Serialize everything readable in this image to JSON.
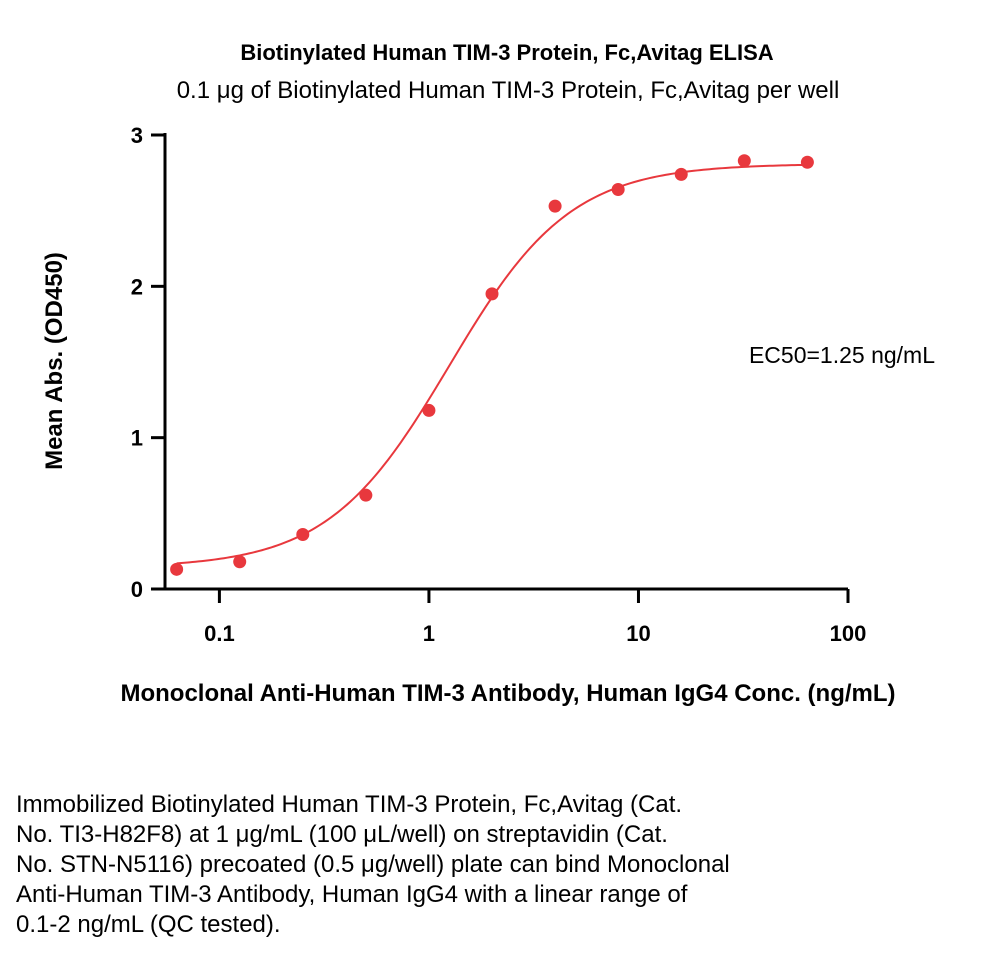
{
  "chart_data": {
    "type": "scatter",
    "title": "Biotinylated Human TIM-3 Protein, Fc,Avitag ELISA",
    "subtitle": "0.1 μg of Biotinylated Human TIM-3 Protein, Fc,Avitag per well",
    "xlabel": "Monoclonal Anti-Human TIM-3 Antibody, Human IgG4 Conc. (ng/mL)",
    "ylabel": "Mean Abs. (OD450)",
    "xscale": "log",
    "xlim": [
      0.055,
      100
    ],
    "ylim": [
      0,
      3
    ],
    "xticks": [
      0.1,
      1,
      10,
      100
    ],
    "xtick_labels": [
      "0.1",
      "1",
      "10",
      "100"
    ],
    "yticks": [
      0,
      1,
      2,
      3
    ],
    "ytick_labels": [
      "0",
      "1",
      "2",
      "3"
    ],
    "grid": false,
    "color": "#e8383d",
    "series": [
      {
        "x": [
          0.0625,
          0.125,
          0.25,
          0.5,
          1,
          2,
          4,
          8,
          16,
          32,
          64
        ],
        "y": [
          0.13,
          0.18,
          0.36,
          0.62,
          1.18,
          1.95,
          2.53,
          2.64,
          2.74,
          2.83,
          2.82
        ]
      }
    ],
    "fit": {
      "type": "4PL",
      "bottom": 0.14,
      "top": 2.81,
      "ec50": 1.25,
      "hill": 1.5
    },
    "annotations": [
      "EC50=1.25 ng/mL"
    ]
  },
  "caption": "Immobilized Biotinylated Human TIM-3 Protein, Fc,Avitag (Cat.\nNo. TI3-H82F8) at 1 μg/mL (100 μL/well) on streptavidin (Cat.\nNo. STN-N5116) precoated (0.5 μg/well) plate can bind Monoclonal\nAnti-Human TIM-3 Antibody, Human IgG4 with a linear range of\n0.1-2 ng/mL (QC tested)."
}
